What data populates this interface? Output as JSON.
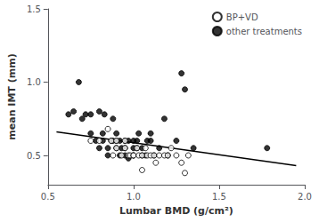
{
  "chart_data": {
    "type": "scatter",
    "xlabel": "Lumbar BMD (g/cm²)",
    "ylabel": "mean IMT (mm)",
    "xlim": [
      0.5,
      2.0
    ],
    "ylim": [
      0.3,
      1.5
    ],
    "xticks": [
      0.5,
      {
        "value": 1.0,
        "label": "1.0"
      },
      1.5,
      {
        "value": 2.0,
        "label": "2.0"
      }
    ],
    "yticks": [
      0.5,
      {
        "value": 1.0,
        "label": "1.0"
      },
      1.5
    ],
    "grid": false,
    "legend": "upper right",
    "series": [
      {
        "name": "BP+VD",
        "type": "scatter",
        "marker": "open",
        "color": "black",
        "x": [
          0.75,
          0.8,
          0.85,
          0.87,
          0.88,
          0.9,
          0.9,
          0.93,
          0.95,
          0.95,
          0.97,
          0.98,
          1.0,
          1.0,
          1.02,
          1.03,
          1.05,
          1.05,
          1.07,
          1.08,
          1.1,
          1.12,
          1.13,
          1.15,
          1.18,
          1.2,
          1.22,
          1.25,
          1.28,
          1.3,
          1.32
        ],
        "values": [
          0.6,
          0.6,
          0.68,
          0.6,
          0.5,
          0.6,
          0.55,
          0.5,
          0.6,
          0.55,
          0.5,
          0.5,
          0.5,
          0.5,
          0.55,
          0.5,
          0.4,
          0.5,
          0.55,
          0.5,
          0.5,
          0.5,
          0.45,
          0.5,
          0.5,
          0.5,
          0.55,
          0.5,
          0.45,
          0.38,
          0.5
        ]
      },
      {
        "name": "other treatments",
        "type": "scatter",
        "marker": "filled",
        "color": "black",
        "x": [
          0.62,
          0.65,
          0.68,
          0.7,
          0.72,
          0.75,
          0.75,
          0.78,
          0.8,
          0.8,
          0.82,
          0.82,
          0.83,
          0.85,
          0.85,
          0.87,
          0.88,
          0.88,
          0.9,
          0.9,
          0.9,
          0.92,
          0.92,
          0.93,
          0.95,
          0.95,
          0.95,
          0.97,
          0.97,
          1.0,
          1.0,
          1.0,
          1.02,
          1.02,
          1.03,
          1.05,
          1.05,
          1.07,
          1.08,
          1.1,
          1.1,
          1.12,
          1.15,
          1.18,
          1.2,
          1.25,
          1.28,
          1.3,
          1.35,
          1.78
        ],
        "values": [
          0.78,
          0.8,
          1.0,
          0.75,
          0.78,
          0.65,
          0.78,
          0.6,
          0.55,
          0.8,
          0.6,
          0.65,
          0.78,
          0.5,
          0.55,
          0.6,
          0.6,
          0.75,
          0.55,
          0.6,
          0.65,
          0.5,
          0.6,
          0.55,
          0.55,
          0.5,
          0.6,
          0.48,
          0.6,
          0.5,
          0.55,
          0.6,
          0.55,
          0.6,
          0.65,
          0.5,
          0.55,
          0.5,
          0.6,
          0.6,
          0.65,
          0.5,
          0.55,
          0.75,
          0.5,
          0.6,
          1.06,
          0.95,
          0.55,
          0.55
        ]
      },
      {
        "type": "line",
        "color": "black",
        "x": [
          0.55,
          1.95
        ],
        "values": [
          0.66,
          0.43
        ]
      }
    ]
  }
}
